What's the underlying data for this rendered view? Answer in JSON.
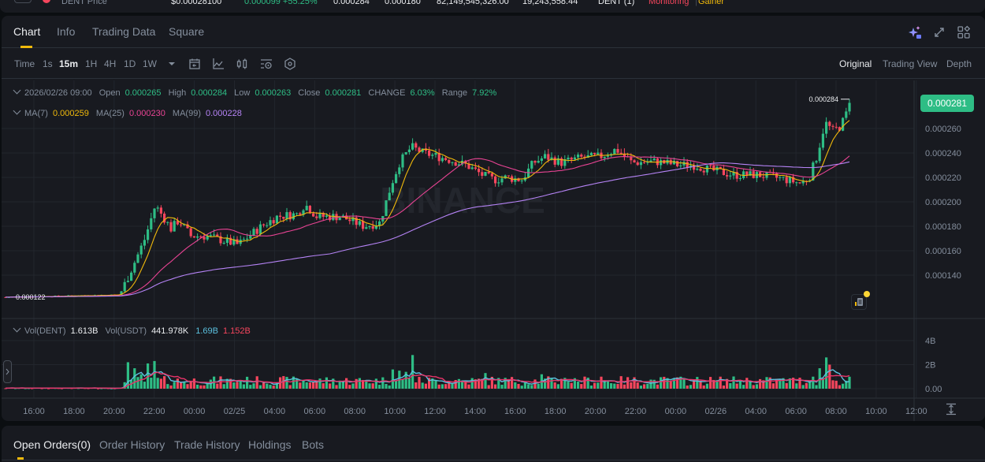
{
  "ticker_bar": {
    "symbol_label": "DENT Price",
    "last_price": "$0.00028100",
    "change": "0.000099 +55.25%",
    "high": "0.000284",
    "low": "0.000180",
    "volume_base": "82,149,545,326.00",
    "volume_quote": "19,243,558.44",
    "token_tag": "DENT (1)",
    "tag_monitoring": "Monitoring",
    "tag_separator": "|",
    "tag_gainer": "Gainer"
  },
  "tabs": [
    {
      "label": "Chart",
      "active": true
    },
    {
      "label": "Info"
    },
    {
      "label": "Trading Data"
    },
    {
      "label": "Square"
    }
  ],
  "header_icons": [
    "ai-sparkle-icon",
    "expand-icon",
    "widgets-icon"
  ],
  "toolbar": {
    "time_label": "Time",
    "timeframes": [
      "1s",
      "15m",
      "1H",
      "4H",
      "1D",
      "1W"
    ],
    "active_timeframe": "15m",
    "tools": [
      "calendar-icon",
      "indicator-icon",
      "candle-type-icon",
      "settings-list-icon",
      "hexagon-settings-icon"
    ],
    "views": [
      "Original",
      "Trading View",
      "Depth"
    ],
    "active_view": "Original"
  },
  "ohlc_legend": {
    "datetime": "2026/02/26 09:00",
    "open_label": "Open",
    "open": "0.000265",
    "high_label": "High",
    "high": "0.000284",
    "low_label": "Low",
    "low": "0.000263",
    "close_label": "Close",
    "close": "0.000281",
    "change_label": "CHANGE",
    "change": "6.03%",
    "range_label": "Range",
    "range": "7.92%"
  },
  "ma_legend": {
    "ma7_label": "MA(7)",
    "ma7": "0.000259",
    "ma25_label": "MA(25)",
    "ma25": "0.000230",
    "ma99_label": "MA(99)",
    "ma99": "0.000228"
  },
  "vol_legend": {
    "base_label": "Vol(DENT)",
    "base": "1.613B",
    "quote_label": "Vol(USDT)",
    "quote": "441.978K",
    "ma5": "1.69B",
    "ma10": "1.152B"
  },
  "price_axis": [
    "0.000260",
    "0.000240",
    "0.000220",
    "0.000200",
    "0.000180",
    "0.000160",
    "0.000140"
  ],
  "current_price_tag": "0.000281",
  "max_marker": "0.000284",
  "min_marker": "0.000122",
  "volume_axis": [
    "4B",
    "2B",
    "0.00"
  ],
  "time_axis": [
    "16:00",
    "18:00",
    "20:00",
    "22:00",
    "00:00",
    "02/25",
    "04:00",
    "06:00",
    "08:00",
    "10:00",
    "12:00",
    "14:00",
    "16:00",
    "18:00",
    "20:00",
    "22:00",
    "00:00",
    "02/26",
    "04:00",
    "06:00",
    "08:00",
    "10:00",
    "12:00"
  ],
  "watermark": "BINANCE",
  "colors": {
    "up": "#2ebd85",
    "down": "#f6465d",
    "ma7": "#f0b90b",
    "ma25": "#e84393",
    "ma99": "#b583f5",
    "vol_ma5": "#5bc0de",
    "vol_ma10": "#e8346a",
    "accent": "#f0b90b"
  },
  "bottom_tabs": [
    {
      "label": "Open Orders(0)",
      "active": true
    },
    {
      "label": "Order History"
    },
    {
      "label": "Trade History"
    },
    {
      "label": "Holdings"
    },
    {
      "label": "Bots"
    }
  ]
}
